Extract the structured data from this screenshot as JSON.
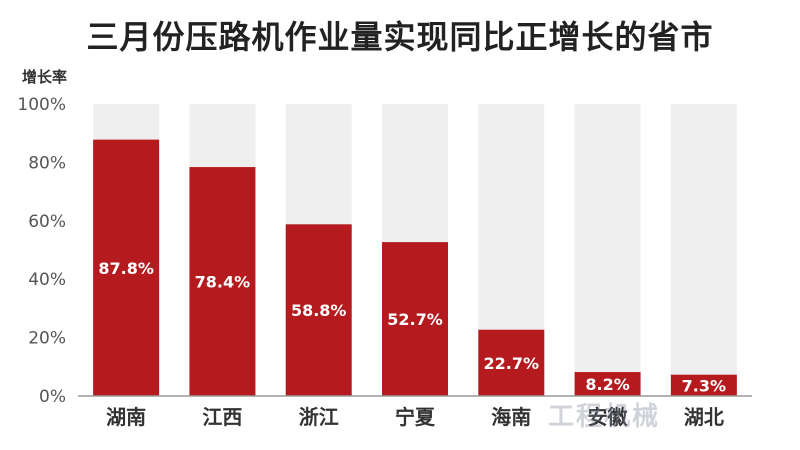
{
  "chart_data": {
    "type": "bar",
    "title": "三月份压路机作业量实现同比正增长的省市",
    "ylabel": "增长率",
    "xlabel": "",
    "categories": [
      "湖南",
      "江西",
      "浙江",
      "宁夏",
      "海南",
      "安徽",
      "湖北"
    ],
    "values": [
      87.8,
      78.4,
      58.8,
      52.7,
      22.7,
      8.2,
      7.3
    ],
    "data_labels": [
      "87.8%",
      "78.4%",
      "58.8%",
      "52.7%",
      "22.7%",
      "8.2%",
      "7.3%"
    ],
    "ylim": [
      0,
      100
    ],
    "yticks": [
      0,
      20,
      40,
      60,
      80,
      100
    ],
    "ytick_labels": [
      "0%",
      "20%",
      "40%",
      "60%",
      "80%",
      "100%"
    ],
    "grid": true,
    "legend": "none",
    "colors": {
      "bar": "#b51b1e",
      "track": "#efefef",
      "axis": "#999999"
    }
  },
  "watermark": "工程机械"
}
